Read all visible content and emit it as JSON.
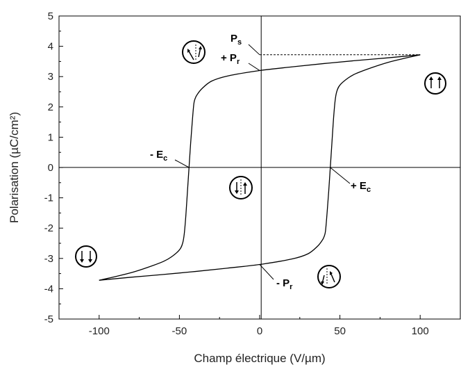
{
  "chart_data": {
    "type": "line",
    "xlabel": "Champ électrique (V/µm)",
    "ylabel": "Polarisation (µC/cm²)",
    "xlim": [
      -125,
      125
    ],
    "ylim": [
      -5,
      5
    ],
    "xticks": [
      -100,
      -50,
      0,
      50,
      100
    ],
    "yticks": [
      -5,
      -4,
      -3,
      -2,
      -1,
      0,
      1,
      2,
      3,
      4,
      5
    ],
    "grid": false,
    "series": [
      {
        "branch": "descending",
        "x": [
          100,
          80,
          60,
          40,
          20,
          0,
          -20,
          -30,
          -36,
          -39,
          -40,
          -41,
          -42,
          -43,
          -44,
          -45,
          -46,
          -47,
          -48,
          -50,
          -55,
          -60,
          -70,
          -80,
          -90,
          -100
        ],
        "y": [
          3.72,
          3.62,
          3.53,
          3.43,
          3.32,
          3.2,
          3.02,
          2.85,
          2.6,
          2.4,
          2.3,
          2.1,
          1.5,
          0.8,
          0.0,
          -0.8,
          -1.6,
          -2.2,
          -2.5,
          -2.72,
          -2.95,
          -3.1,
          -3.3,
          -3.47,
          -3.6,
          -3.72
        ]
      },
      {
        "branch": "ascending",
        "x": [
          -100,
          -80,
          -60,
          -40,
          -20,
          0,
          20,
          30,
          36,
          39,
          40,
          41,
          42,
          43,
          44,
          45,
          46,
          47,
          48,
          50,
          55,
          60,
          70,
          80,
          90,
          100
        ],
        "y": [
          -3.72,
          -3.62,
          -3.53,
          -3.43,
          -3.32,
          -3.2,
          -3.02,
          -2.85,
          -2.6,
          -2.4,
          -2.3,
          -2.1,
          -1.5,
          -0.8,
          0.0,
          0.8,
          1.6,
          2.2,
          2.5,
          2.72,
          2.95,
          3.1,
          3.3,
          3.47,
          3.6,
          3.72
        ]
      }
    ],
    "annotations": {
      "ps": {
        "main": "P",
        "sub": "s"
      },
      "plus_pr": {
        "main": "+ P",
        "sub": "r"
      },
      "minus_pr": {
        "main": "- P",
        "sub": "r"
      },
      "minus_ec": {
        "main": "- E",
        "sub": "c"
      },
      "plus_ec": {
        "main": "+ E",
        "sub": "c"
      }
    },
    "markers": {
      "ps": [
        0,
        3.72
      ],
      "plus_pr": [
        0,
        3.2
      ],
      "minus_pr": [
        0,
        -3.2
      ],
      "minus_ec": [
        -44,
        0
      ],
      "plus_ec": [
        44,
        0
      ]
    }
  }
}
